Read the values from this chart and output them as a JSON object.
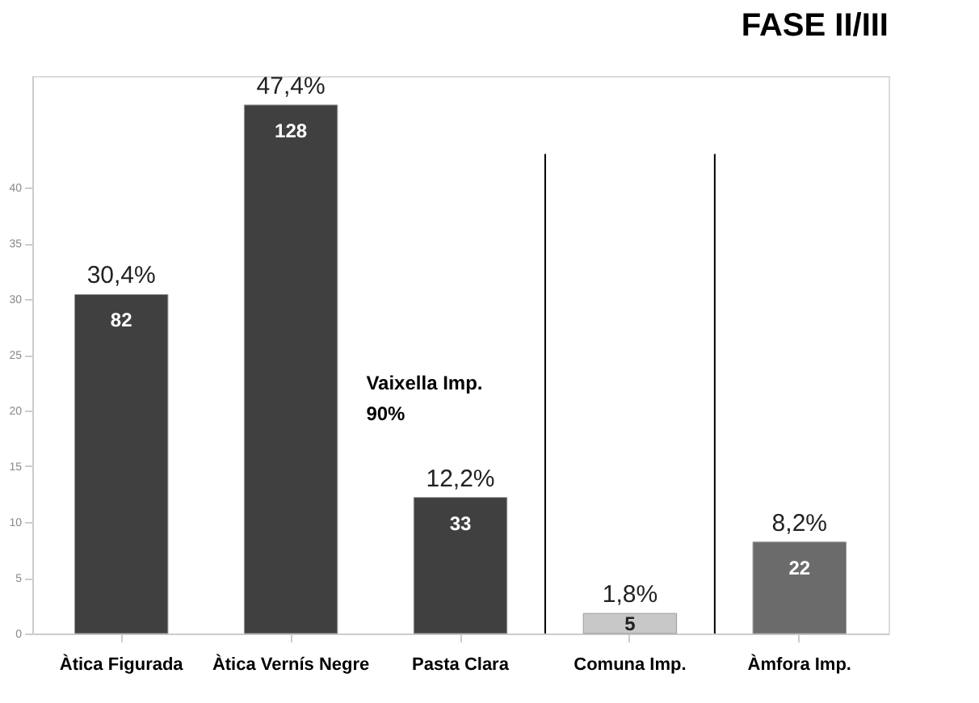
{
  "chart_data": {
    "type": "bar",
    "title": "FASE II/III",
    "categories": [
      "Àtica Figurada",
      "Àtica Vernís Negre",
      "Pasta Clara",
      "Comuna Imp.",
      "Àmfora Imp."
    ],
    "values": [
      30.4,
      47.4,
      12.2,
      1.8,
      8.2
    ],
    "colors": [
      "#404040",
      "#404040",
      "#404040",
      "#c8c8c8",
      "#6b6b6b"
    ],
    "value_labels": [
      "30,4%",
      "47,4%",
      "12,2%",
      "1,8%",
      "8,2%"
    ],
    "annotations": [
      "82",
      "128",
      "33",
      "5",
      "22",
      "Vaixella Imp.",
      "90%"
    ],
    "ylim": [
      0,
      50
    ],
    "yticks": [
      0,
      5,
      10,
      15,
      20,
      25,
      30,
      35,
      40
    ],
    "grid": false
  }
}
